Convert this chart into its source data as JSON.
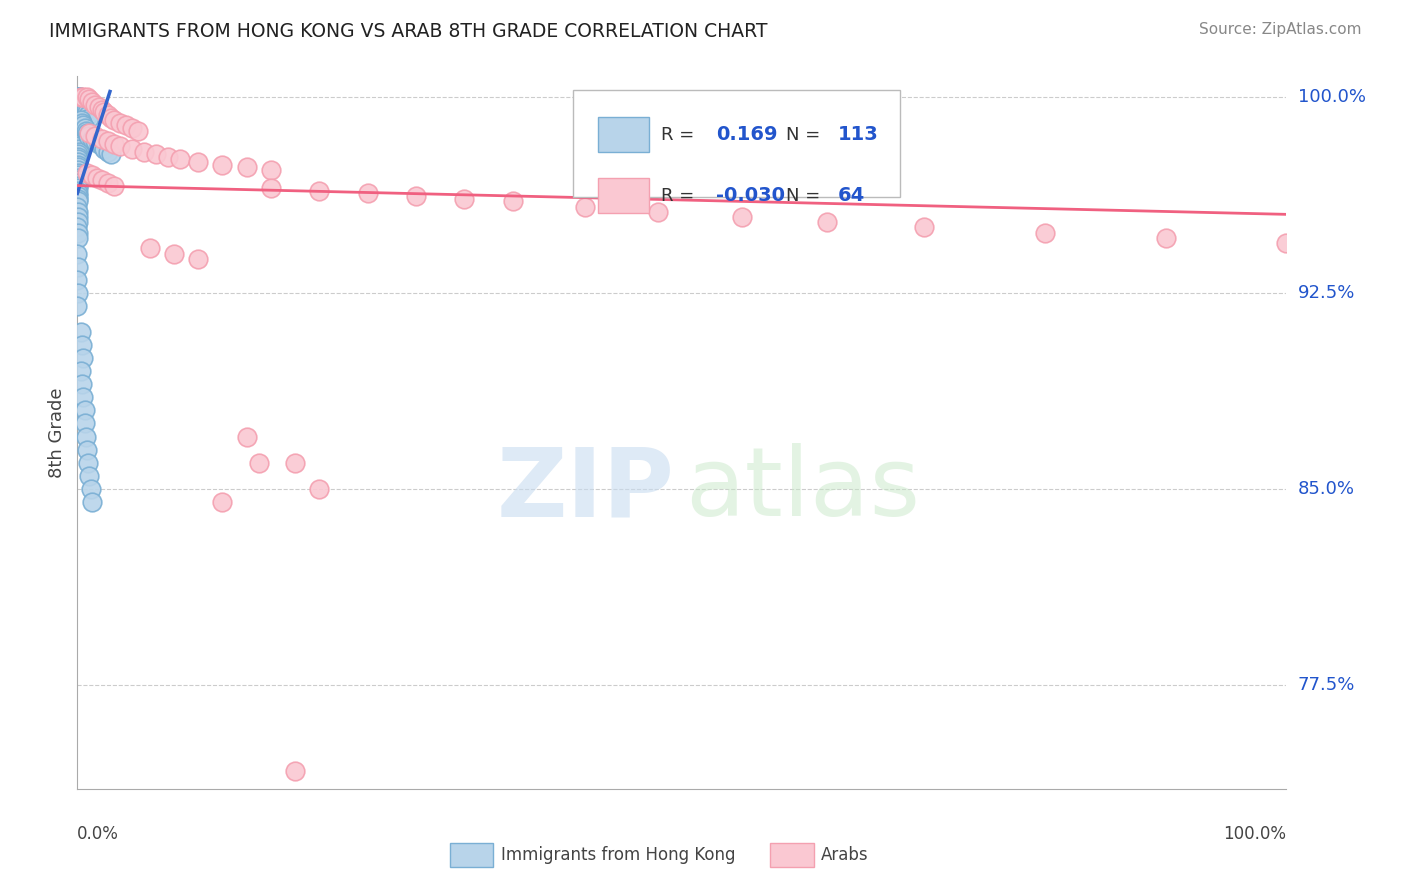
{
  "title": "IMMIGRANTS FROM HONG KONG VS ARAB 8TH GRADE CORRELATION CHART",
  "source": "Source: ZipAtlas.com",
  "ylabel": "8th Grade",
  "y_tick_labels": [
    "77.5%",
    "85.0%",
    "92.5%",
    "100.0%"
  ],
  "y_tick_values": [
    0.775,
    0.85,
    0.925,
    1.0
  ],
  "x_range": [
    0.0,
    1.0
  ],
  "y_range": [
    0.735,
    1.008
  ],
  "legend_blue_R": "0.169",
  "legend_blue_N": "113",
  "legend_pink_R": "-0.030",
  "legend_pink_N": "64",
  "blue_color": "#7AAFD4",
  "blue_fill": "#B8D4EA",
  "pink_color": "#F4A0B0",
  "pink_fill": "#FAC8D2",
  "trendline_blue": "#3366CC",
  "trendline_pink": "#F06080",
  "background_color": "#FFFFFF",
  "grid_color": "#CCCCCC",
  "blue_trendline_x": [
    0.0,
    0.027
  ],
  "blue_trendline_y": [
    0.963,
    1.002
  ],
  "pink_trendline_x": [
    0.0,
    1.0
  ],
  "pink_trendline_y": [
    0.966,
    0.955
  ],
  "blue_points_x": [
    0.0003,
    0.0005,
    0.0007,
    0.0009,
    0.0011,
    0.0013,
    0.0015,
    0.0017,
    0.0019,
    0.0004,
    0.0006,
    0.0008,
    0.001,
    0.0012,
    0.0014,
    0.0016,
    0.0018,
    0.002,
    0.0003,
    0.0005,
    0.0007,
    0.0009,
    0.0011,
    0.0013,
    0.0015,
    0.0002,
    0.0004,
    0.0006,
    0.0008,
    0.001,
    0.0012,
    0.0014,
    0.0002,
    0.0003,
    0.0004,
    0.0005,
    0.0006,
    0.0007,
    0.0008,
    0.0009,
    0.0002,
    0.0003,
    0.0004,
    0.0005,
    0.0006,
    0.0007,
    0.0001,
    0.0002,
    0.0003,
    0.0004,
    0.0005,
    0.0001,
    0.0002,
    0.0003,
    0.0004,
    0.0001,
    0.0002,
    0.0003,
    0.0001,
    0.0002,
    0.0001,
    0.0002,
    0.0001,
    0.0025,
    0.003,
    0.004,
    0.005,
    0.006,
    0.007,
    0.008,
    0.009,
    0.01,
    0.003,
    0.004,
    0.005,
    0.006,
    0.007,
    0.008,
    0.009,
    0.012,
    0.015,
    0.018,
    0.02,
    0.022,
    0.025,
    0.028,
    0.003,
    0.004,
    0.005,
    0.003,
    0.004,
    0.005,
    0.006,
    0.006,
    0.007,
    0.008,
    0.009,
    0.01,
    0.011,
    0.012
  ],
  "blue_points_y": [
    1.0,
    1.0,
    1.0,
    1.0,
    1.0,
    1.0,
    1.0,
    1.0,
    1.0,
    0.999,
    0.998,
    0.997,
    0.997,
    0.996,
    0.996,
    0.995,
    0.994,
    0.993,
    0.992,
    0.991,
    0.99,
    0.989,
    0.988,
    0.987,
    0.986,
    0.985,
    0.984,
    0.983,
    0.982,
    0.981,
    0.98,
    0.979,
    0.978,
    0.977,
    0.976,
    0.975,
    0.974,
    0.973,
    0.972,
    0.971,
    0.97,
    0.969,
    0.968,
    0.967,
    0.966,
    0.965,
    0.964,
    0.963,
    0.962,
    0.961,
    0.96,
    0.958,
    0.956,
    0.954,
    0.952,
    0.95,
    0.948,
    0.946,
    0.94,
    0.935,
    0.93,
    0.925,
    0.92,
    1.0,
    0.999,
    0.998,
    0.997,
    0.996,
    0.995,
    0.994,
    0.993,
    0.992,
    0.991,
    0.99,
    0.989,
    0.988,
    0.987,
    0.986,
    0.985,
    0.984,
    0.983,
    0.982,
    0.981,
    0.98,
    0.979,
    0.978,
    0.91,
    0.905,
    0.9,
    0.895,
    0.89,
    0.885,
    0.88,
    0.875,
    0.87,
    0.865,
    0.86,
    0.855,
    0.85,
    0.845
  ],
  "pink_points_x": [
    0.003,
    0.005,
    0.008,
    0.01,
    0.012,
    0.015,
    0.018,
    0.02,
    0.022,
    0.025,
    0.028,
    0.03,
    0.035,
    0.04,
    0.045,
    0.05,
    0.01,
    0.015,
    0.02,
    0.025,
    0.03,
    0.035,
    0.045,
    0.055,
    0.065,
    0.075,
    0.085,
    0.1,
    0.12,
    0.14,
    0.16,
    0.008,
    0.012,
    0.016,
    0.02,
    0.025,
    0.03,
    0.16,
    0.2,
    0.24,
    0.28,
    0.32,
    0.36,
    0.42,
    0.48,
    0.55,
    0.62,
    0.7,
    0.8,
    0.9,
    1.0,
    0.14,
    0.18,
    0.06,
    0.08,
    0.1,
    0.15,
    0.2,
    0.12,
    0.18
  ],
  "pink_points_y": [
    1.0,
    1.0,
    1.0,
    0.999,
    0.998,
    0.997,
    0.996,
    0.995,
    0.994,
    0.993,
    0.992,
    0.991,
    0.99,
    0.989,
    0.988,
    0.987,
    0.986,
    0.985,
    0.984,
    0.983,
    0.982,
    0.981,
    0.98,
    0.979,
    0.978,
    0.977,
    0.976,
    0.975,
    0.974,
    0.973,
    0.972,
    0.971,
    0.97,
    0.969,
    0.968,
    0.967,
    0.966,
    0.965,
    0.964,
    0.963,
    0.962,
    0.961,
    0.96,
    0.958,
    0.956,
    0.954,
    0.952,
    0.95,
    0.948,
    0.946,
    0.944,
    0.87,
    0.86,
    0.942,
    0.94,
    0.938,
    0.86,
    0.85,
    0.845,
    0.742
  ]
}
